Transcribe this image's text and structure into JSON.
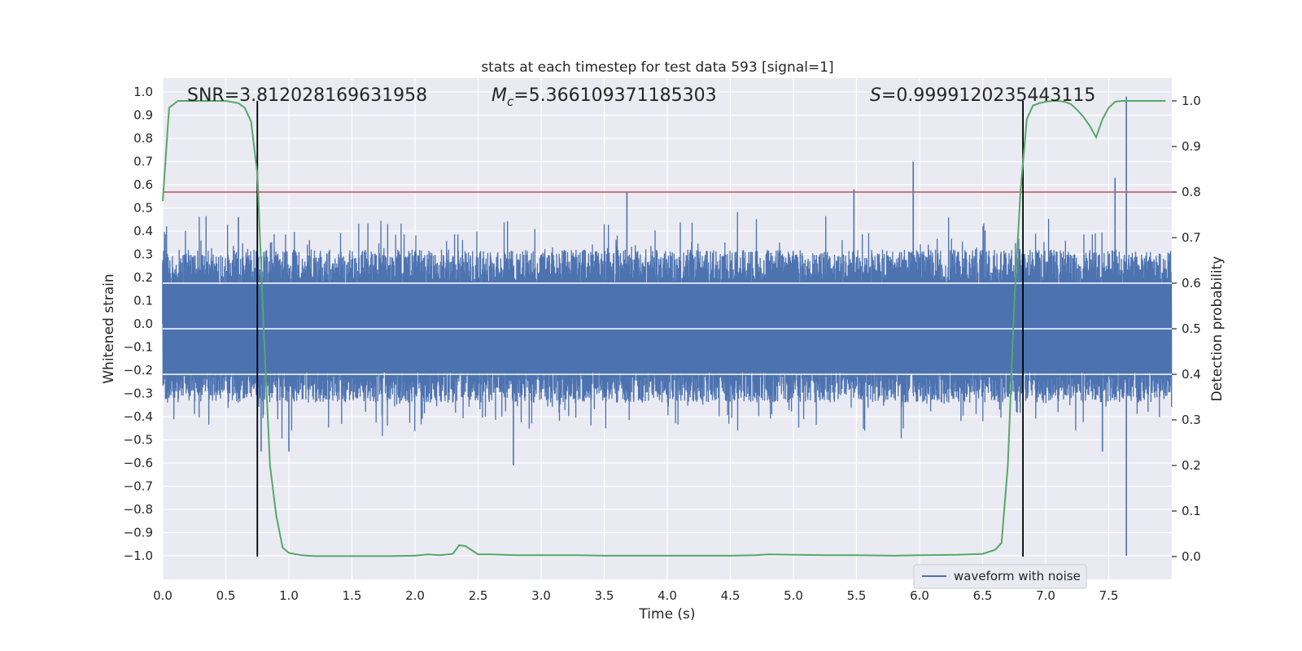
{
  "chart_data": {
    "type": "line",
    "title": "stats at each timestep for test data 593 [signal=1]",
    "xlabel": "Time (s)",
    "ylabel": "Whitened strain",
    "y2label": "Detection probability",
    "xlim": [
      0.0,
      8.0
    ],
    "ylim": [
      -1.1,
      1.05
    ],
    "y2lim": [
      -0.05,
      1.03
    ],
    "xticks": [
      "0.0",
      "0.5",
      "1.0",
      "1.5",
      "2.0",
      "2.5",
      "3.0",
      "3.5",
      "4.0",
      "4.5",
      "5.0",
      "5.5",
      "6.0",
      "6.5",
      "7.0",
      "7.5"
    ],
    "yticks": [
      "1.0",
      "0.9",
      "0.8",
      "0.7",
      "0.6",
      "0.5",
      "0.4",
      "0.3",
      "0.2",
      "0.1",
      "0.0",
      "−0.1",
      "−0.2",
      "−0.3",
      "−0.4",
      "−0.5",
      "−0.6",
      "−0.7",
      "−0.8",
      "−0.9",
      "−1.0"
    ],
    "y2ticks": [
      "1.0",
      "0.9",
      "0.8",
      "0.7",
      "0.6",
      "0.5",
      "0.4",
      "0.3",
      "0.2",
      "0.1",
      "0.0"
    ],
    "annotations": {
      "snr": "SNR=3.812028169631958",
      "mc_symbol": "M",
      "mc_sub": "c",
      "mc_value": "=5.366109371185303",
      "s_symbol": "S",
      "s_value": "=0.9999120235443115"
    },
    "threshold": {
      "axis": "right",
      "value": 0.8,
      "color": "#c44e52"
    },
    "vertical_lines": [
      0.75,
      6.82
    ],
    "legend": {
      "label": "waveform with noise",
      "placement": "lower-right"
    },
    "grid": true,
    "series": [
      {
        "name": "waveform with noise",
        "axis": "left",
        "color": "#4c72b0",
        "style": "dense noise band, typical amplitude ±0.25, peaks to ±0.6",
        "peaks": [
          [
            0.0,
            0.26
          ],
          [
            0.6,
            0.46
          ],
          [
            0.78,
            -0.55
          ],
          [
            1.0,
            -0.55
          ],
          [
            2.78,
            -0.61
          ],
          [
            3.68,
            0.57
          ],
          [
            5.48,
            0.58
          ],
          [
            5.95,
            0.7
          ],
          [
            7.45,
            -0.55
          ],
          [
            7.55,
            0.63
          ],
          [
            7.64,
            0.98
          ],
          [
            7.64,
            -1.0
          ]
        ]
      },
      {
        "name": "",
        "axis": "right",
        "color": "#55a868",
        "x": [
          0.0,
          0.05,
          0.12,
          0.2,
          0.3,
          0.4,
          0.5,
          0.6,
          0.65,
          0.7,
          0.75,
          0.8,
          0.85,
          0.9,
          0.95,
          1.0,
          1.1,
          1.2,
          1.5,
          1.8,
          2.0,
          2.1,
          2.2,
          2.3,
          2.35,
          2.4,
          2.5,
          2.6,
          2.8,
          3.0,
          3.3,
          3.5,
          3.8,
          4.0,
          4.3,
          4.5,
          4.7,
          4.8,
          5.0,
          5.3,
          5.5,
          5.8,
          6.0,
          6.3,
          6.5,
          6.6,
          6.65,
          6.7,
          6.75,
          6.8,
          6.85,
          6.9,
          6.95,
          7.0,
          7.05,
          7.1,
          7.15,
          7.2,
          7.25,
          7.3,
          7.35,
          7.4,
          7.45,
          7.5,
          7.55,
          7.6,
          7.7,
          7.8,
          7.95
        ],
        "y": [
          0.78,
          0.985,
          1.0,
          1.0,
          1.0,
          1.0,
          1.0,
          0.995,
          0.985,
          0.955,
          0.84,
          0.5,
          0.2,
          0.09,
          0.02,
          0.008,
          0.003,
          0.001,
          0.001,
          0.001,
          0.002,
          0.005,
          0.003,
          0.006,
          0.025,
          0.023,
          0.005,
          0.005,
          0.003,
          0.003,
          0.003,
          0.002,
          0.002,
          0.002,
          0.002,
          0.002,
          0.003,
          0.005,
          0.004,
          0.003,
          0.003,
          0.002,
          0.003,
          0.004,
          0.006,
          0.015,
          0.03,
          0.2,
          0.55,
          0.8,
          0.96,
          0.99,
          0.995,
          0.998,
          1.0,
          1.0,
          0.998,
          0.993,
          0.98,
          0.965,
          0.945,
          0.92,
          0.96,
          0.985,
          0.998,
          1.0,
          1.0,
          1.0,
          1.0
        ]
      }
    ]
  }
}
